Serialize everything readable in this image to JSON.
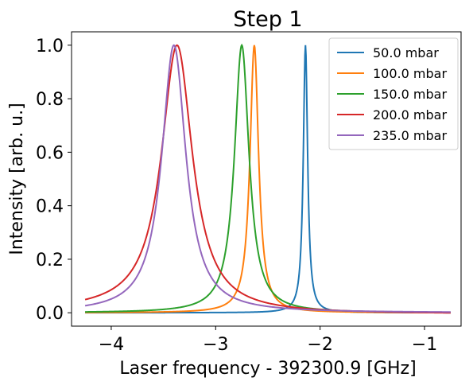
{
  "chart_data": {
    "type": "line",
    "title": "Step 1",
    "xlabel": "Laser frequency - 392300.9 [GHz]",
    "ylabel": "Intensity [arb. u.]",
    "xlim": [
      -4.38,
      -0.65
    ],
    "ylim": [
      -0.05,
      1.05
    ],
    "xticks": [
      -4,
      -3,
      -2,
      -1
    ],
    "xtick_labels": [
      "−4",
      "−3",
      "−2",
      "−1"
    ],
    "yticks": [
      0.0,
      0.2,
      0.4,
      0.6,
      0.8,
      1.0
    ],
    "ytick_labels": [
      "0.0",
      "0.2",
      "0.4",
      "0.6",
      "0.8",
      "1.0"
    ],
    "grid": false,
    "legend_position": "top-right",
    "x_range": [
      -4.25,
      -0.75
    ],
    "series": [
      {
        "name": "50.0 mbar",
        "color": "#1f77b4",
        "center": -2.14,
        "width": 0.025,
        "tail": 0.0,
        "baseline": 0.0
      },
      {
        "name": "100.0 mbar",
        "color": "#ff7f0e",
        "center": -2.63,
        "width": 0.05,
        "tail": 0.0,
        "baseline": 0.0
      },
      {
        "name": "150.0 mbar",
        "color": "#2ca02c",
        "center": -2.75,
        "width": 0.085,
        "tail": 0.0,
        "baseline": 0.0
      },
      {
        "name": "200.0 mbar",
        "color": "#d62728",
        "center": -3.37,
        "width": 0.18,
        "tail": 0.02,
        "baseline": -0.005
      },
      {
        "name": "235.0 mbar",
        "color": "#9467bd",
        "center": -3.4,
        "width": 0.14,
        "tail": 0.0,
        "baseline": 0.0
      }
    ]
  }
}
